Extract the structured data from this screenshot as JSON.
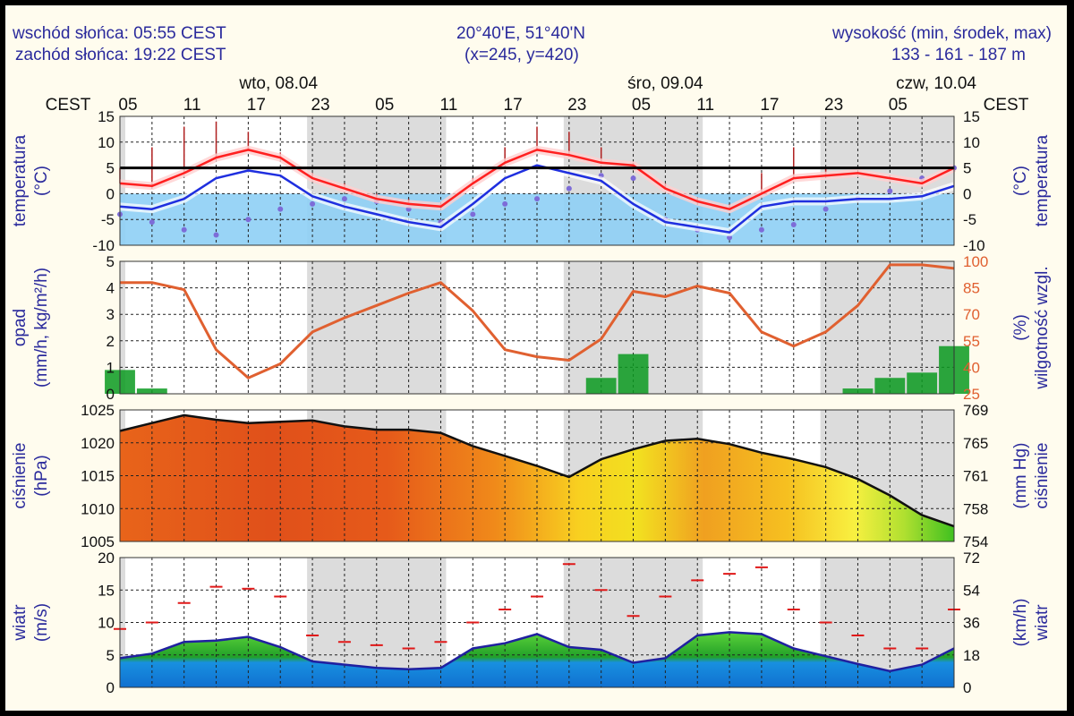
{
  "header": {
    "sunrise": "wschód słońca: 05:55 CEST",
    "sunset": "zachód słońca: 19:22 CEST",
    "coords": "20°40'E, 51°40'N",
    "grid": "(x=245,  y=420)",
    "elev_title": "wysokość (min, środek, max)",
    "elev_values": "133 - 161 - 187 m"
  },
  "timeline": {
    "tz_left": "CEST",
    "tz_right": "CEST",
    "days": [
      "wto, 08.04",
      "śro, 09.04",
      "czw, 10.04"
    ],
    "hour_labels": [
      "05",
      "11",
      "17",
      "23",
      "05",
      "11",
      "17",
      "23",
      "05",
      "11",
      "17",
      "23",
      "05"
    ]
  },
  "colors": {
    "temp": "#ff2020",
    "dew": "#1f2fdf",
    "humidity": "#e06030",
    "precip": "#0a9a20",
    "axis_text": "#2a2a9c",
    "right_axis_orange": "#e06030",
    "night_band": "#dcdcdc",
    "zero_line": "#000000"
  },
  "chart_data": [
    {
      "type": "line",
      "panel": "temperature",
      "ylabel_left": [
        "temperatura",
        "(°C)"
      ],
      "ylabel_right": [
        "(°C)",
        "temperatura"
      ],
      "ylim": [
        -10,
        15
      ],
      "yticks": [
        15,
        10,
        5,
        0,
        -5,
        -10
      ],
      "hline": 5,
      "x_hours": [
        0,
        3,
        6,
        9,
        12,
        15,
        18,
        21,
        24,
        27,
        30,
        33,
        36,
        39,
        42,
        45,
        48,
        51,
        54,
        57,
        60,
        63,
        66,
        69,
        72,
        75,
        78
      ],
      "series": [
        {
          "role": "temperature",
          "values": [
            2,
            1.5,
            4,
            7,
            8.5,
            7,
            3,
            1,
            -1,
            -2,
            -2.5,
            2,
            6,
            8.5,
            7.5,
            6,
            5.5,
            1,
            -1.5,
            -3,
            0,
            3,
            3.5,
            4,
            3,
            2,
            5
          ]
        },
        {
          "role": "dew-point",
          "values": [
            -2.5,
            -3,
            -1,
            3,
            4.5,
            3.5,
            -0.5,
            -2.5,
            -4,
            -5.5,
            -6.5,
            -2,
            3,
            5.5,
            4,
            2.5,
            -2,
            -5.5,
            -6.5,
            -7.5,
            -2.5,
            -1.5,
            -1.5,
            -1,
            -1,
            -0.5,
            1.5
          ]
        },
        {
          "role": "dots",
          "values": [
            -4,
            -5.5,
            -7,
            -8,
            -5,
            -3,
            -2,
            -1,
            -1.5,
            -3,
            -5.5,
            -4,
            -2,
            -1,
            1,
            3.5,
            3,
            -5,
            -7,
            -8.5,
            -7,
            -6,
            -3,
            -1,
            0.5,
            3,
            5
          ]
        }
      ],
      "spike_max": [
        5,
        9,
        13,
        14,
        12,
        8,
        4,
        2,
        0,
        -1,
        -2,
        3,
        9,
        13,
        12,
        9,
        6,
        2,
        -1,
        -2,
        4,
        9,
        5,
        4,
        3,
        3,
        5
      ]
    },
    {
      "type": "area",
      "panel": "precipitation-humidity",
      "ylabel_left": [
        "opad",
        "(mm/h, kg/m²/h)"
      ],
      "ylabel_right": [
        "(%)",
        "wilgotność wzgl."
      ],
      "ylim": [
        0,
        5
      ],
      "yticks": [
        5,
        4,
        3,
        2,
        1,
        0
      ],
      "y2lim": [
        25,
        100
      ],
      "y2ticks": [
        100,
        85,
        70,
        55,
        40,
        25
      ],
      "x_hours": [
        0,
        3,
        6,
        9,
        12,
        15,
        18,
        21,
        24,
        27,
        30,
        33,
        36,
        39,
        42,
        45,
        48,
        51,
        54,
        57,
        60,
        63,
        66,
        69,
        72,
        75,
        78
      ],
      "series": [
        {
          "role": "humidity",
          "values": [
            88,
            88,
            84,
            50,
            34,
            42,
            60,
            68,
            75,
            82,
            88,
            72,
            50,
            46,
            44,
            56,
            83,
            80,
            86,
            82,
            60,
            52,
            60,
            75,
            98,
            98,
            96
          ]
        },
        {
          "role": "precipitation",
          "values": [
            0.9,
            0.2,
            0,
            0,
            0,
            0,
            0,
            0,
            0,
            0,
            0,
            0,
            0,
            0,
            0,
            0.6,
            1.5,
            0,
            0,
            0,
            0,
            0,
            0,
            0.2,
            0.6,
            0.8,
            1.8
          ]
        }
      ]
    },
    {
      "type": "area",
      "panel": "pressure",
      "ylabel_left": [
        "ciśnienie",
        "(hPa)"
      ],
      "ylabel_right": [
        "(mm Hg)",
        "ciśnienie"
      ],
      "ylim": [
        1005,
        1025
      ],
      "yticks": [
        1025,
        1020,
        1015,
        1010,
        1005
      ],
      "y2ticks": [
        "769",
        "765",
        "761",
        "758",
        "754"
      ],
      "x_hours": [
        0,
        3,
        6,
        9,
        12,
        15,
        18,
        21,
        24,
        27,
        30,
        33,
        36,
        39,
        42,
        45,
        48,
        51,
        54,
        57,
        60,
        63,
        66,
        69,
        72,
        75,
        78
      ],
      "values": [
        1021.8,
        1023,
        1024.2,
        1023.5,
        1023,
        1023.2,
        1023.4,
        1022.5,
        1022,
        1022,
        1021.5,
        1019.5,
        1018,
        1016.5,
        1014.8,
        1017.5,
        1019,
        1020.3,
        1020.6,
        1019.8,
        1018.5,
        1017.5,
        1016.3,
        1014.5,
        1012,
        1009,
        1007.3
      ]
    },
    {
      "type": "area",
      "panel": "wind",
      "ylabel_left": [
        "wiatr",
        "(m/s)"
      ],
      "ylabel_right": [
        "(km/h)",
        "wiatr"
      ],
      "ylim": [
        0,
        20
      ],
      "yticks": [
        20,
        15,
        10,
        5,
        0
      ],
      "y2ticks": [
        "72",
        "54",
        "36",
        "18",
        "0"
      ],
      "x_hours": [
        0,
        3,
        6,
        9,
        12,
        15,
        18,
        21,
        24,
        27,
        30,
        33,
        36,
        39,
        42,
        45,
        48,
        51,
        54,
        57,
        60,
        63,
        66,
        69,
        72,
        75,
        78
      ],
      "series": [
        {
          "role": "wind-speed",
          "values": [
            4.5,
            5.2,
            7,
            7.2,
            7.8,
            6.2,
            4,
            3.5,
            3,
            2.8,
            3,
            6,
            6.8,
            8.2,
            6.2,
            5.8,
            3.8,
            4.5,
            8,
            8.5,
            8.2,
            6,
            4.8,
            3.6,
            2.5,
            3.5,
            6
          ]
        },
        {
          "role": "gusts",
          "values": [
            9,
            10,
            13,
            15.5,
            15.2,
            14,
            8,
            7,
            6.5,
            6,
            7,
            10,
            12,
            14,
            19,
            15,
            11,
            14,
            16.5,
            17.5,
            18.5,
            12,
            10,
            8,
            6,
            6,
            12
          ]
        }
      ]
    }
  ]
}
